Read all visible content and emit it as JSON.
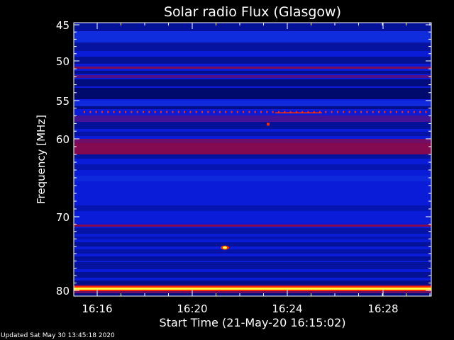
{
  "chart_data": {
    "type": "heatmap",
    "title": "Solar radio Flux (Glasgow)",
    "ylabel": "Frequency [MHz]",
    "xlabel": "Start Time (21-May-20 16:15:02)",
    "y_ticks": [
      {
        "value": 45,
        "label": "45"
      },
      {
        "value": 50,
        "label": "50"
      },
      {
        "value": 55,
        "label": "55"
      },
      {
        "value": 60,
        "label": "60"
      },
      {
        "value": 70,
        "label": "70"
      },
      {
        "value": 80,
        "label": "80"
      }
    ],
    "x_ticks": [
      {
        "label": "16:16"
      },
      {
        "label": "16:20"
      },
      {
        "label": "16:24"
      },
      {
        "label": "16:28"
      }
    ],
    "colors": {
      "background": "#0a1cd8",
      "dark_band": "#000a66",
      "mid_band": "#1234e0",
      "red_band": "#8a0a4a",
      "hot": "#ff2a00",
      "saturated": "#ffff40"
    }
  },
  "footer": {
    "updated": "Updated Sat May 30 13:45:18 2020"
  }
}
